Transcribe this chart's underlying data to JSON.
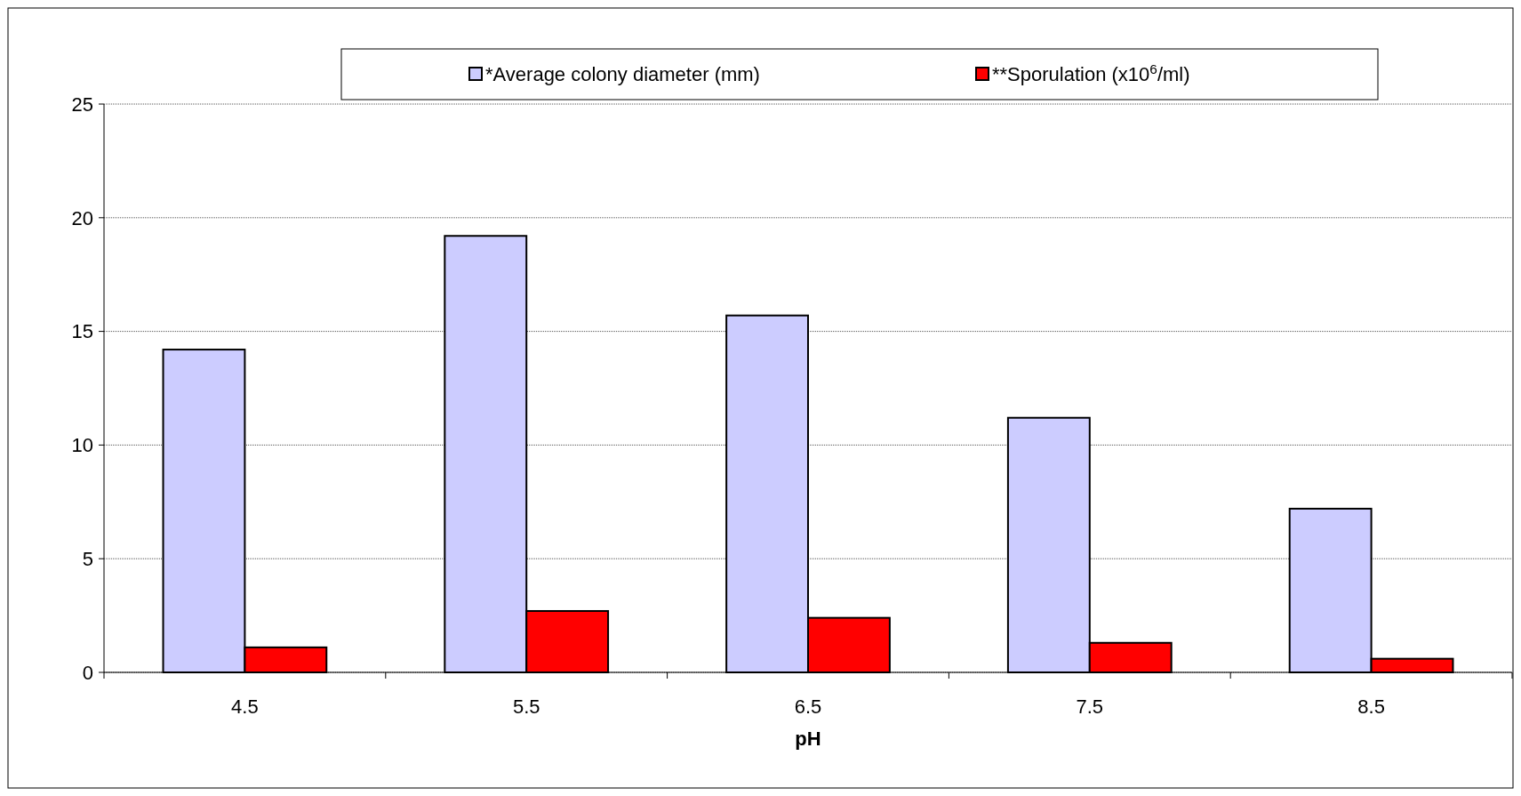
{
  "chart_data": {
    "type": "bar",
    "xlabel": "pH",
    "categories": [
      "4.5",
      "5.5",
      "6.5",
      "7.5",
      "8.5"
    ],
    "series": [
      {
        "name": "*Average colony diameter (mm)",
        "color": "#ccccff",
        "values": [
          14.2,
          19.2,
          15.7,
          11.2,
          7.2
        ]
      },
      {
        "name": "**Sporulation (x10$^{6}$/ml)",
        "color": "#ff0000",
        "values": [
          1.1,
          2.7,
          2.4,
          1.3,
          0.6
        ]
      }
    ],
    "ylim": [
      0,
      25
    ],
    "yticks": [
      0,
      5,
      10,
      15,
      20,
      25
    ],
    "grid": "y",
    "legend": "top"
  }
}
